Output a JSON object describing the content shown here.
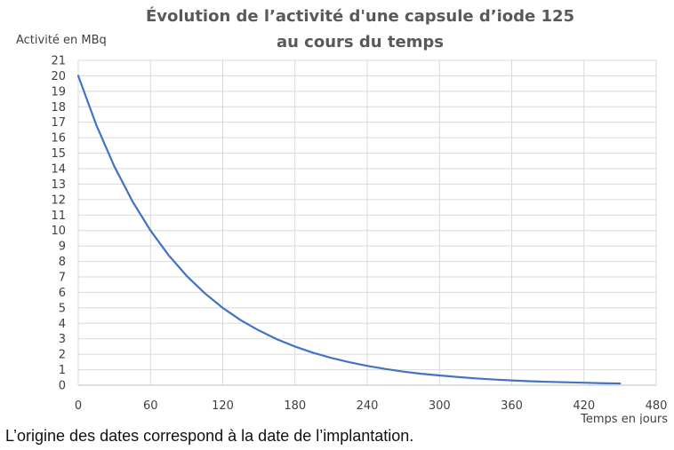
{
  "chart_data": {
    "type": "line",
    "title_lines": [
      "Évolution de l’activité d'une capsule d’iode 125",
      "au cours du temps"
    ],
    "ylabel": "Activité en MBq",
    "xlabel": "Temps en jours",
    "xlim": [
      0,
      480
    ],
    "ylim": [
      0,
      21
    ],
    "x_ticks": [
      0,
      60,
      120,
      180,
      240,
      300,
      360,
      420,
      480
    ],
    "y_ticks": [
      0,
      1,
      2,
      3,
      4,
      5,
      6,
      7,
      8,
      9,
      10,
      11,
      12,
      13,
      14,
      15,
      16,
      17,
      18,
      19,
      20,
      21
    ],
    "grid": true,
    "legend": "none",
    "line_color": "#4472C4",
    "series": [
      {
        "x": [
          0,
          15,
          30,
          45,
          60,
          75,
          90,
          105,
          120,
          135,
          150,
          165,
          180,
          195,
          210,
          225,
          240,
          255,
          270,
          285,
          300,
          315,
          330,
          345,
          360,
          375,
          390,
          405,
          420,
          435,
          450
        ],
        "values": [
          20,
          16.82,
          14.14,
          11.89,
          10,
          8.41,
          7.07,
          5.95,
          5,
          4.2,
          3.54,
          2.97,
          2.5,
          2.1,
          1.77,
          1.49,
          1.25,
          1.05,
          0.88,
          0.74,
          0.63,
          0.53,
          0.44,
          0.37,
          0.31,
          0.26,
          0.22,
          0.19,
          0.16,
          0.13,
          0.11
        ]
      }
    ]
  },
  "caption": "L’origine des dates correspond à la date de l’implantation."
}
